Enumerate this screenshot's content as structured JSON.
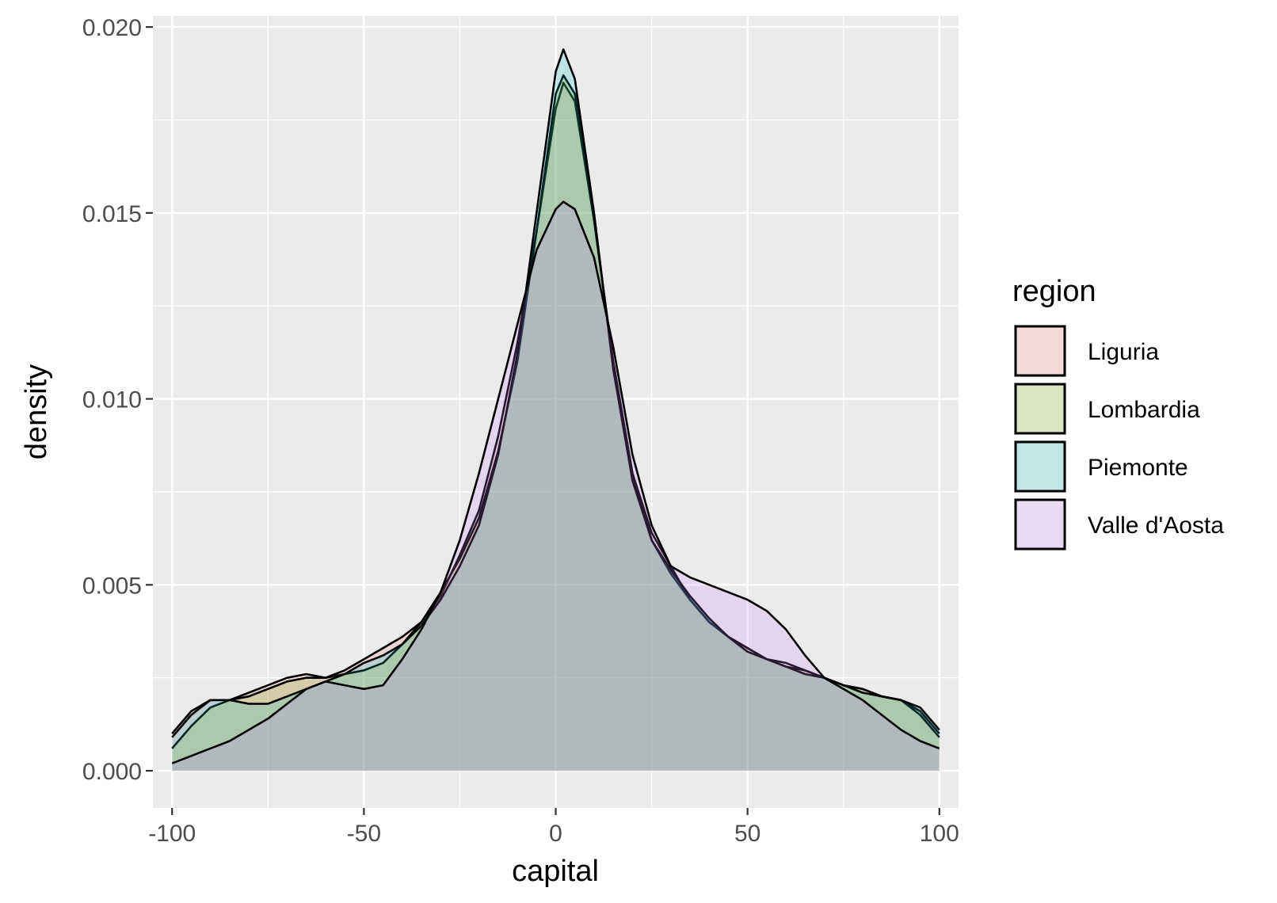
{
  "chart_data": {
    "type": "area",
    "subtype": "density",
    "xlabel": "capital",
    "ylabel": "density",
    "xlim": [
      -105,
      105
    ],
    "ylim": [
      -0.001,
      0.0203
    ],
    "x_ticks": [
      -100,
      -50,
      0,
      50,
      100
    ],
    "x_tick_labels": [
      "-100",
      "-50",
      "0",
      "50",
      "100"
    ],
    "y_ticks": [
      0.0,
      0.005,
      0.01,
      0.015,
      0.02
    ],
    "y_tick_labels": [
      "0.000",
      "0.005",
      "0.010",
      "0.015",
      "0.020"
    ],
    "grid": true,
    "background": "#ebebeb",
    "legend": {
      "title": "region",
      "position": "right"
    },
    "series": [
      {
        "name": "Liguria",
        "color": "#F8766D",
        "x": [
          -100,
          -95,
          -90,
          -85,
          -80,
          -75,
          -70,
          -65,
          -60,
          -55,
          -50,
          -45,
          -40,
          -35,
          -30,
          -25,
          -20,
          -15,
          -10,
          -5,
          0,
          2,
          5,
          10,
          15,
          20,
          25,
          30,
          35,
          40,
          45,
          50,
          55,
          60,
          65,
          70,
          75,
          80,
          85,
          90,
          95,
          100
        ],
        "y": [
          0.001,
          0.0016,
          0.0019,
          0.0019,
          0.0021,
          0.0023,
          0.0025,
          0.0026,
          0.0025,
          0.0027,
          0.003,
          0.0033,
          0.0036,
          0.004,
          0.0047,
          0.0058,
          0.007,
          0.009,
          0.0115,
          0.0145,
          0.0178,
          0.0185,
          0.018,
          0.0148,
          0.011,
          0.008,
          0.0064,
          0.0055,
          0.0046,
          0.004,
          0.0036,
          0.0033,
          0.003,
          0.0029,
          0.0027,
          0.0025,
          0.0023,
          0.0022,
          0.002,
          0.0019,
          0.0016,
          0.001
        ]
      },
      {
        "name": "Lombardia",
        "color": "#7CAE00",
        "x": [
          -100,
          -95,
          -90,
          -85,
          -80,
          -75,
          -70,
          -65,
          -60,
          -55,
          -50,
          -45,
          -40,
          -35,
          -30,
          -25,
          -20,
          -15,
          -10,
          -5,
          0,
          2,
          5,
          10,
          15,
          20,
          25,
          30,
          35,
          40,
          45,
          50,
          55,
          60,
          65,
          70,
          75,
          80,
          85,
          90,
          95,
          100
        ],
        "y": [
          0.0006,
          0.0012,
          0.0017,
          0.0019,
          0.002,
          0.0022,
          0.0024,
          0.0025,
          0.0025,
          0.0026,
          0.0027,
          0.0029,
          0.0034,
          0.004,
          0.0048,
          0.0057,
          0.0068,
          0.0086,
          0.011,
          0.0145,
          0.0182,
          0.0187,
          0.0182,
          0.0148,
          0.011,
          0.008,
          0.0062,
          0.0053,
          0.0046,
          0.004,
          0.0036,
          0.0033,
          0.003,
          0.0028,
          0.0027,
          0.0025,
          0.0023,
          0.0022,
          0.002,
          0.0019,
          0.0015,
          0.0009
        ]
      },
      {
        "name": "Piemonte",
        "color": "#00BFC4",
        "x": [
          -100,
          -95,
          -90,
          -85,
          -80,
          -75,
          -70,
          -65,
          -60,
          -55,
          -50,
          -45,
          -40,
          -35,
          -30,
          -25,
          -20,
          -15,
          -10,
          -5,
          0,
          2,
          5,
          10,
          15,
          20,
          25,
          30,
          35,
          40,
          45,
          50,
          55,
          60,
          65,
          70,
          75,
          80,
          85,
          90,
          95,
          100
        ],
        "y": [
          0.0009,
          0.0015,
          0.0019,
          0.0019,
          0.0018,
          0.0018,
          0.002,
          0.0022,
          0.0024,
          0.0026,
          0.0029,
          0.0031,
          0.0034,
          0.0039,
          0.0046,
          0.0055,
          0.0066,
          0.0085,
          0.0112,
          0.015,
          0.0188,
          0.0194,
          0.0186,
          0.015,
          0.0108,
          0.0078,
          0.0062,
          0.0054,
          0.0047,
          0.0041,
          0.0036,
          0.0032,
          0.003,
          0.0028,
          0.0026,
          0.0025,
          0.0023,
          0.0021,
          0.002,
          0.0019,
          0.0017,
          0.0011
        ]
      },
      {
        "name": "Valle d'Aosta",
        "color": "#C77CFF",
        "x": [
          -100,
          -95,
          -90,
          -85,
          -80,
          -75,
          -70,
          -65,
          -60,
          -55,
          -50,
          -45,
          -40,
          -35,
          -30,
          -25,
          -20,
          -15,
          -10,
          -5,
          0,
          2,
          5,
          10,
          15,
          20,
          25,
          30,
          35,
          40,
          45,
          50,
          55,
          60,
          65,
          70,
          75,
          80,
          85,
          90,
          95,
          100
        ],
        "y": [
          0.0002,
          0.0004,
          0.0006,
          0.0008,
          0.0011,
          0.0014,
          0.0018,
          0.0022,
          0.0024,
          0.0023,
          0.0022,
          0.0023,
          0.003,
          0.0038,
          0.0048,
          0.0062,
          0.008,
          0.01,
          0.012,
          0.014,
          0.0151,
          0.0153,
          0.0151,
          0.0138,
          0.0114,
          0.0085,
          0.0066,
          0.0055,
          0.0052,
          0.005,
          0.0048,
          0.0046,
          0.0043,
          0.0038,
          0.0031,
          0.0025,
          0.0022,
          0.0019,
          0.0015,
          0.0011,
          0.0008,
          0.0006
        ]
      }
    ]
  }
}
